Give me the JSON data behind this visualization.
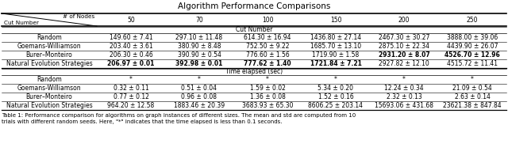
{
  "title": "Algorithm Performance Comparisons",
  "col_headers": [
    "50",
    "70",
    "100",
    "150",
    "200",
    "250"
  ],
  "header_label_nodes": "# of Nodes",
  "header_label_cut": "Cut Number",
  "section1_label": "Cut Number",
  "section2_label": "Time elapsed (sec)",
  "rows_cut": [
    {
      "name": "Random",
      "values": [
        "149.60 ± 7.41",
        "297.10 ± 11.48",
        "614.30 ± 16.94",
        "1436.80 ± 27.14",
        "2467.30 ± 30.27",
        "3888.00 ± 39.06"
      ],
      "bold_cols": []
    },
    {
      "name": "Goemans-Williamson",
      "values": [
        "203.40 ± 3.61",
        "380.90 ± 8.48",
        "752.50 ± 9.22",
        "1685.70 ± 13.10",
        "2875.10 ± 22.34",
        "4439.90 ± 26.07"
      ],
      "bold_cols": []
    },
    {
      "name": "Burer–Monteiro",
      "values": [
        "206.30 ± 0.46",
        "390.90 ± 0.54",
        "776.60 ± 1.56",
        "1719.90 ± 1.58",
        "2931.20 ± 8.07",
        "4526.70 ± 12.96"
      ],
      "bold_cols": [
        4,
        5
      ]
    },
    {
      "name": "Natural Evolution Strategies",
      "values": [
        "206.97 ± 0.01",
        "392.98 ± 0.01",
        "777.62 ± 1.40",
        "1721.84 ± 7.21",
        "2927.82 ± 12.10",
        "4515.72 ± 11.41"
      ],
      "bold_cols": [
        0,
        1,
        2,
        3
      ]
    }
  ],
  "rows_time": [
    {
      "name": "Random",
      "values": [
        "*",
        "*",
        "*",
        "*",
        "*",
        "*"
      ],
      "bold_cols": []
    },
    {
      "name": "Goemans-Williamson",
      "values": [
        "0.32 ± 0.11",
        "0.51 ± 0.04",
        "1.59 ± 0.02",
        "5.34 ± 0.20",
        "12.24 ± 0.34",
        "21.09 ± 0.54"
      ],
      "bold_cols": []
    },
    {
      "name": "Burer–Monteiro",
      "values": [
        "0.77 ± 0.12",
        "0.96 ± 0.08",
        "1.36 ± 0.08",
        "1.52 ± 0.16",
        "2.32 ± 0.13",
        "2.63 ± 0.14"
      ],
      "bold_cols": []
    },
    {
      "name": "Natural Evolution Strategies",
      "values": [
        "964.20 ± 12.58",
        "1883.46 ± 20.39",
        "3683.93 ± 65.30",
        "8606.25 ± 203.14",
        "15693.06 ± 431.68",
        "23621.38 ± 847.84"
      ],
      "bold_cols": []
    }
  ],
  "caption_line1": "Table 1: Performance comparison for algorithms on graph instances of different sizes. The mean and std are computed from 10",
  "caption_line2": "trials with different random seeds. Here, \"*\" indicates that the time elapsed is less than 0.1 seconds.",
  "font_size": 5.5,
  "title_font_size": 7.5
}
